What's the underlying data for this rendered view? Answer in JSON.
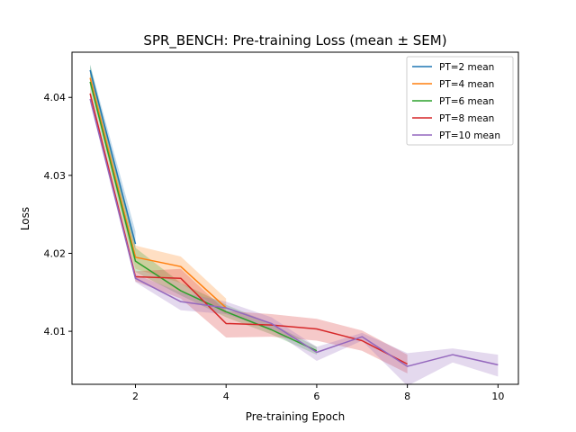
{
  "chart_data": {
    "type": "line",
    "title": "SPR_BENCH: Pre-training Loss (mean ± SEM)",
    "xlabel": "Pre-training Epoch",
    "ylabel": "Loss",
    "xlim": [
      0.6,
      10.45
    ],
    "ylim": [
      4.0032,
      4.0458
    ],
    "xticks": [
      2,
      4,
      6,
      8,
      10
    ],
    "xtick_labels": [
      "2",
      "4",
      "6",
      "8",
      "10"
    ],
    "yticks": [
      4.01,
      4.02,
      4.03,
      4.04
    ],
    "ytick_labels": [
      "4.01",
      "4.02",
      "4.03",
      "4.04"
    ],
    "grid": false,
    "legend_position": "top-right",
    "series": [
      {
        "name": "PT=2 mean",
        "color": "#1f77b4",
        "x": [
          1,
          2
        ],
        "values": [
          4.0435,
          4.0212
        ],
        "lower": [
          4.0428,
          4.0203
        ],
        "upper": [
          4.0442,
          4.0228
        ]
      },
      {
        "name": "PT=4 mean",
        "color": "#ff7f0e",
        "x": [
          1,
          2,
          3,
          4
        ],
        "values": [
          4.0425,
          4.0195,
          4.0183,
          4.013
        ],
        "lower": [
          4.0418,
          4.018,
          4.0162,
          4.0122
        ],
        "upper": [
          4.0432,
          4.021,
          4.0196,
          4.0142
        ]
      },
      {
        "name": "PT=6 mean",
        "color": "#2ca02c",
        "x": [
          1,
          2,
          3,
          4,
          5,
          6
        ],
        "values": [
          4.042,
          4.019,
          4.0152,
          4.0125,
          4.0102,
          4.0075
        ],
        "lower": [
          4.0412,
          4.0176,
          4.0146,
          4.0118,
          4.0096,
          4.007
        ],
        "upper": [
          4.0442,
          4.0207,
          4.0162,
          4.0134,
          4.011,
          4.008
        ]
      },
      {
        "name": "PT=8 mean",
        "color": "#d62728",
        "x": [
          1,
          2,
          3,
          4,
          5,
          6,
          7,
          8
        ],
        "values": [
          4.0405,
          4.017,
          4.0168,
          4.011,
          4.0108,
          4.0103,
          4.0088,
          4.0058
        ],
        "lower": [
          4.04,
          4.0164,
          4.0142,
          4.0092,
          4.0093,
          4.0088,
          4.0075,
          4.0046
        ],
        "upper": [
          4.0411,
          4.0177,
          4.018,
          4.0126,
          4.0122,
          4.0116,
          4.0101,
          4.007
        ]
      },
      {
        "name": "PT=10 mean",
        "color": "#9467bd",
        "x": [
          1,
          2,
          3,
          4,
          5,
          6,
          7,
          8,
          9,
          10
        ],
        "values": [
          4.0398,
          4.0168,
          4.0138,
          4.013,
          4.011,
          4.0073,
          4.0093,
          4.0055,
          4.007,
          4.0057
        ],
        "lower": [
          4.0394,
          4.0163,
          4.0127,
          4.0122,
          4.0102,
          4.0062,
          4.0088,
          4.003,
          4.006,
          4.0042
        ],
        "upper": [
          4.0402,
          4.0173,
          4.015,
          4.0138,
          4.0118,
          4.008,
          4.0098,
          4.0072,
          4.0078,
          4.007
        ]
      }
    ]
  }
}
